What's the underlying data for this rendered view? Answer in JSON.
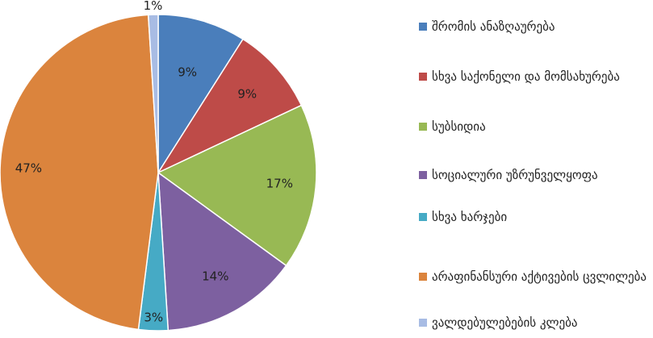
{
  "chart_data": {
    "type": "pie",
    "start_angle_deg": 0,
    "direction": "clockwise",
    "legend_position": "right",
    "slices": [
      {
        "label": "შრომის ანაზღაურება",
        "value": 9,
        "display": "9%",
        "color": "#4A7EBB"
      },
      {
        "label": "სხვა საქონელი და მომსახურება",
        "value": 9,
        "display": "9%",
        "color": "#BE4B48"
      },
      {
        "label": "სუბსიდია",
        "value": 17,
        "display": "17%",
        "color": "#98B954"
      },
      {
        "label": "სოციალური უზრუნველყოფა",
        "value": 14,
        "display": "14%",
        "color": "#7D60A0"
      },
      {
        "label": "სხვა ხარჯები",
        "value": 3,
        "display": "3%",
        "color": "#46AAC5"
      },
      {
        "label": "არაფინანსური აქტივების ცვლილება",
        "value": 47,
        "display": "47%",
        "color": "#DB843D"
      },
      {
        "label": "ვალდებულებების კლება",
        "value": 1,
        "display": "1%",
        "color": "#A8BCE4"
      }
    ]
  }
}
